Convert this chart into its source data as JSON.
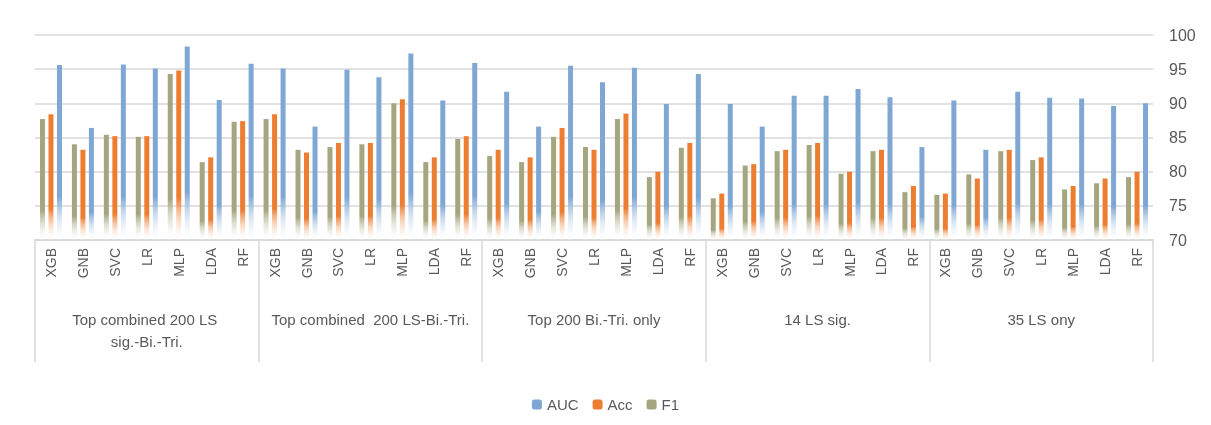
{
  "chart_data": {
    "type": "bar",
    "categories": [
      "XGB",
      "GNB",
      "SVC",
      "LR",
      "MLP",
      "LDA",
      "RF",
      "XGB",
      "GNB",
      "SVC",
      "LR",
      "MLP",
      "LDA",
      "RF",
      "XGB",
      "GNB",
      "SVC",
      "LR",
      "MLP",
      "LDA",
      "RF",
      "XGB",
      "GNB",
      "SVC",
      "LR",
      "MLP",
      "LDA",
      "RF",
      "XGB",
      "GNB",
      "SVC",
      "LR",
      "MLP",
      "LDA",
      "RF"
    ],
    "series": [
      {
        "name": "F1",
        "color": "#a5a57f",
        "values": [
          87.7,
          84.0,
          85.4,
          85.1,
          94.3,
          81.4,
          87.3,
          87.7,
          83.2,
          83.6,
          84.0,
          90.0,
          81.4,
          84.8,
          82.3,
          81.4,
          85.1,
          83.6,
          87.7,
          79.2,
          83.5,
          76.1,
          80.9,
          83.0,
          83.9,
          79.7,
          83.0,
          77.0,
          76.6,
          79.6,
          83.0,
          81.7,
          77.4,
          78.3,
          79.2
        ]
      },
      {
        "name": "Acc",
        "color": "#ed7d31",
        "values": [
          88.4,
          83.2,
          85.2,
          85.2,
          94.8,
          82.1,
          87.4,
          88.4,
          82.8,
          84.2,
          84.2,
          90.6,
          82.1,
          85.2,
          83.2,
          82.1,
          86.4,
          83.2,
          88.5,
          80.0,
          84.2,
          76.8,
          81.1,
          83.2,
          84.2,
          80.0,
          83.2,
          77.9,
          76.8,
          79.0,
          83.2,
          82.1,
          77.9,
          79.0,
          80.0
        ]
      },
      {
        "name": "AUC",
        "color": "#7fa7d4",
        "values": [
          95.6,
          86.4,
          95.7,
          95.1,
          98.3,
          90.5,
          95.8,
          95.1,
          86.6,
          94.9,
          93.8,
          97.3,
          90.4,
          95.9,
          91.7,
          86.6,
          95.5,
          93.1,
          95.2,
          89.9,
          94.3,
          89.9,
          86.6,
          91.1,
          91.1,
          92.1,
          90.9,
          83.6,
          90.4,
          83.2,
          91.7,
          90.8,
          90.7,
          89.6,
          90.0
        ]
      }
    ],
    "annotations": [
      "Top combined 200 LS sig.-Bi.-Tri.",
      "Top combined  200 LS-Bi.-Tri.",
      "Top 200 Bi.-Tri. only",
      "14 LS sig.",
      "35 LS ony"
    ],
    "ylim": [
      70,
      100
    ],
    "yticks": [
      70,
      75,
      80,
      85,
      90,
      95,
      100
    ],
    "grid": true,
    "legend": "bottom"
  }
}
